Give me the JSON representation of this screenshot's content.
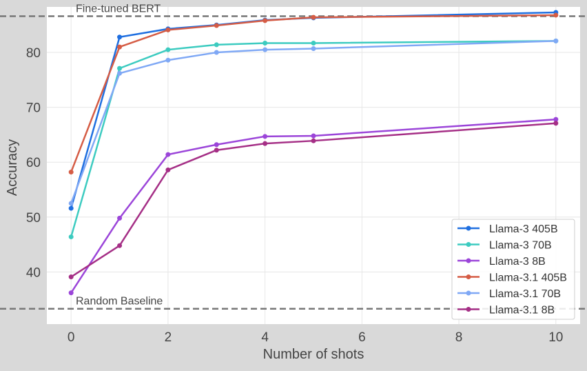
{
  "chart_data": {
    "type": "line",
    "title": "",
    "xlabel": "Number of shots",
    "ylabel": "Accuracy",
    "xlim": [
      -0.5,
      10.5
    ],
    "ylim": [
      30.5,
      88.3
    ],
    "xticks": [
      "0",
      "2",
      "4",
      "6",
      "8",
      "10"
    ],
    "yticks": [
      "40",
      "50",
      "60",
      "70",
      "80"
    ],
    "grid": true,
    "legend_position": "lower-right",
    "x": [
      0,
      1,
      2,
      3,
      4,
      5,
      10
    ],
    "series": [
      {
        "name": "Llama-3 405B",
        "color": "#1f6fe0",
        "values": [
          51.6,
          82.8,
          84.3,
          85.0,
          85.9,
          86.3,
          87.3
        ]
      },
      {
        "name": "Llama-3 70B",
        "color": "#3ccbc0",
        "values": [
          46.4,
          77.1,
          80.5,
          81.4,
          81.7,
          81.7,
          82.1
        ]
      },
      {
        "name": "Llama-3 8B",
        "color": "#9b45d9",
        "values": [
          36.2,
          49.8,
          61.4,
          63.2,
          64.7,
          64.8,
          67.8
        ]
      },
      {
        "name": "Llama-3.1 405B",
        "color": "#d55c45",
        "values": [
          58.2,
          81.0,
          84.1,
          84.9,
          85.8,
          86.4,
          86.8
        ]
      },
      {
        "name": "Llama-3.1 70B",
        "color": "#7fa8f5",
        "values": [
          52.5,
          76.2,
          78.6,
          80.0,
          80.5,
          80.7,
          82.1
        ]
      },
      {
        "name": "Llama-3.1 8B",
        "color": "#a52f86",
        "values": [
          39.1,
          44.8,
          58.6,
          62.2,
          63.4,
          63.9,
          67.1
        ]
      }
    ],
    "reference_lines": [
      {
        "label": "Fine-tuned BERT",
        "value": 86.6,
        "color": "#777777"
      },
      {
        "label": "Random Baseline",
        "value": 33.3,
        "color": "#777777"
      }
    ]
  }
}
